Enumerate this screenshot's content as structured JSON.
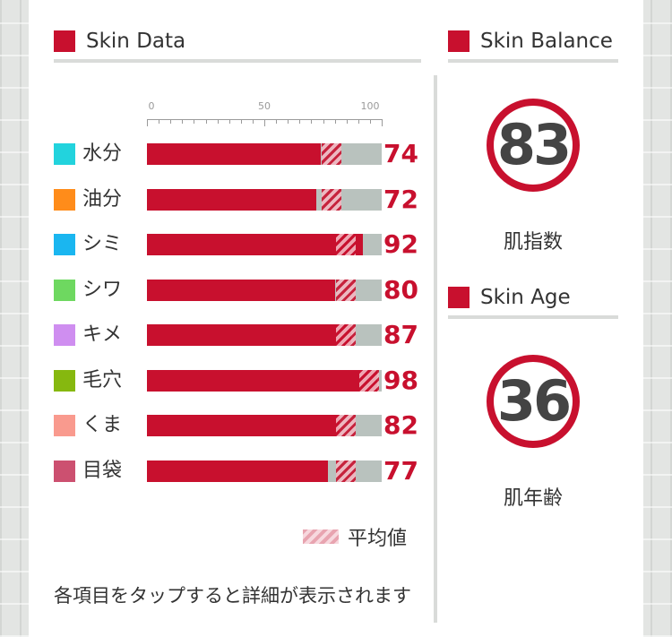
{
  "sections": {
    "skin_data": "Skin Data",
    "skin_balance": "Skin Balance",
    "skin_age": "Skin Age"
  },
  "scale": {
    "ticks": [
      "0",
      "50",
      "100"
    ],
    "min": 0,
    "max": 100
  },
  "rows": [
    {
      "label": "水分",
      "value": "74",
      "avg": 83,
      "color": "#22d3dd"
    },
    {
      "label": "油分",
      "value": "72",
      "avg": 83,
      "color": "#ff8c1a"
    },
    {
      "label": "シミ",
      "value": "92",
      "avg": 89,
      "color": "#1ab6f0"
    },
    {
      "label": "シワ",
      "value": "80",
      "avg": 89,
      "color": "#6ed860"
    },
    {
      "label": "キメ",
      "value": "87",
      "avg": 89,
      "color": "#cf8ef0"
    },
    {
      "label": "毛穴",
      "value": "98",
      "avg": 99,
      "color": "#86b80f"
    },
    {
      "label": "くま",
      "value": "82",
      "avg": 89,
      "color": "#f99a8e"
    },
    {
      "label": "目袋",
      "value": "77",
      "avg": 89,
      "color": "#cc5070"
    }
  ],
  "legend": {
    "average_label": "平均値"
  },
  "note": "各項目をタップすると詳細が表示されます",
  "balance": {
    "value": "83",
    "caption": "肌指数"
  },
  "age": {
    "value": "36",
    "caption": "肌年齢"
  },
  "colors": {
    "accent": "#c8102e",
    "track": "#b9c2be",
    "divider": "#d9dbd9"
  }
}
